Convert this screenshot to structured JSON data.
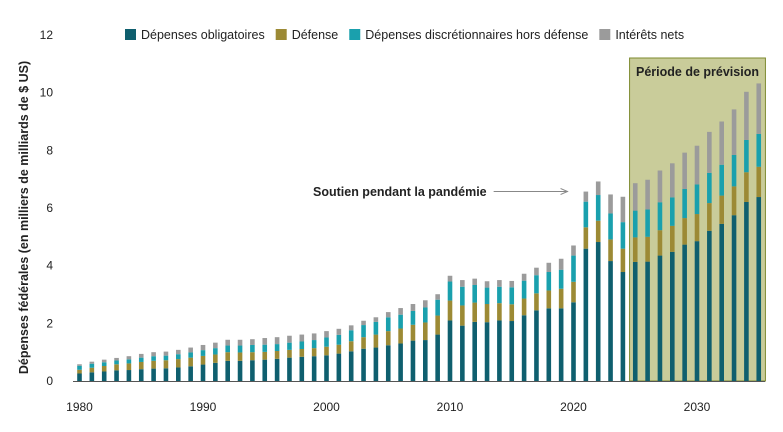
{
  "chart_data": {
    "type": "bar",
    "stacked": true,
    "title": "",
    "xlabel": "",
    "ylabel": "Dépenses fédérales (en milliers de milliards de $ US)",
    "ylim": [
      0,
      12
    ],
    "yticks": [
      0,
      2,
      4,
      6,
      8,
      10,
      12
    ],
    "xticks": [
      1980,
      1990,
      2000,
      2010,
      2020,
      2030
    ],
    "grid": false,
    "legend": "top",
    "colors": {
      "mandatory": "#0f5f6e",
      "defense": "#9c8a35",
      "nondefense": "#1aa0ad",
      "interest": "#9b9b9b",
      "forecast_bg": "#c9cc9a",
      "forecast_border": "#7d8a2e",
      "arrow": "#888888"
    },
    "x": [
      1980,
      1981,
      1982,
      1983,
      1984,
      1985,
      1986,
      1987,
      1988,
      1989,
      1990,
      1991,
      1992,
      1993,
      1994,
      1995,
      1996,
      1997,
      1998,
      1999,
      2000,
      2001,
      2002,
      2003,
      2004,
      2005,
      2006,
      2007,
      2008,
      2009,
      2010,
      2011,
      2012,
      2013,
      2014,
      2015,
      2016,
      2017,
      2018,
      2019,
      2020,
      2021,
      2022,
      2023,
      2024,
      2025,
      2026,
      2027,
      2028,
      2029,
      2030,
      2031,
      2032,
      2033,
      2034,
      2035
    ],
    "series": [
      {
        "key": "mandatory",
        "name": "Dépenses obligatoires",
        "values": [
          0.26,
          0.3,
          0.33,
          0.37,
          0.38,
          0.41,
          0.43,
          0.44,
          0.47,
          0.51,
          0.57,
          0.63,
          0.7,
          0.7,
          0.72,
          0.74,
          0.77,
          0.81,
          0.84,
          0.86,
          0.89,
          0.95,
          1.03,
          1.12,
          1.16,
          1.24,
          1.3,
          1.4,
          1.42,
          1.61,
          2.1,
          1.92,
          2.05,
          2.04,
          2.1,
          2.08,
          2.28,
          2.45,
          2.52,
          2.52,
          2.73,
          4.59,
          4.82,
          4.16,
          3.78,
          4.13,
          4.14,
          4.35,
          4.48,
          4.73,
          4.85,
          5.21,
          5.45,
          5.75,
          6.21,
          6.38
        ]
      },
      {
        "key": "defense",
        "name": "Défense",
        "values": [
          0.13,
          0.16,
          0.19,
          0.21,
          0.23,
          0.25,
          0.27,
          0.28,
          0.29,
          0.3,
          0.3,
          0.29,
          0.3,
          0.29,
          0.28,
          0.27,
          0.27,
          0.27,
          0.27,
          0.28,
          0.3,
          0.31,
          0.35,
          0.4,
          0.45,
          0.49,
          0.52,
          0.55,
          0.61,
          0.66,
          0.69,
          0.7,
          0.67,
          0.63,
          0.6,
          0.58,
          0.58,
          0.59,
          0.62,
          0.68,
          0.71,
          0.74,
          0.74,
          0.75,
          0.81,
          0.85,
          0.86,
          0.88,
          0.9,
          0.92,
          0.94,
          0.96,
          0.98,
          1.0,
          1.03,
          1.05
        ]
      },
      {
        "key": "nondefense",
        "name": "Dépenses discrétionnaires hors défense",
        "values": [
          0.14,
          0.14,
          0.13,
          0.13,
          0.14,
          0.15,
          0.16,
          0.16,
          0.17,
          0.18,
          0.2,
          0.22,
          0.23,
          0.24,
          0.25,
          0.25,
          0.24,
          0.25,
          0.26,
          0.28,
          0.32,
          0.34,
          0.38,
          0.42,
          0.44,
          0.48,
          0.48,
          0.48,
          0.52,
          0.55,
          0.66,
          0.65,
          0.61,
          0.57,
          0.57,
          0.59,
          0.62,
          0.63,
          0.64,
          0.66,
          0.91,
          0.89,
          0.89,
          0.9,
          0.92,
          0.93,
          0.95,
          0.97,
          0.99,
          1.01,
          1.03,
          1.05,
          1.07,
          1.09,
          1.12,
          1.14
        ]
      },
      {
        "key": "interest",
        "name": "Intérêts nets",
        "values": [
          0.05,
          0.07,
          0.09,
          0.09,
          0.11,
          0.13,
          0.14,
          0.14,
          0.15,
          0.17,
          0.18,
          0.19,
          0.2,
          0.2,
          0.2,
          0.23,
          0.24,
          0.24,
          0.24,
          0.23,
          0.22,
          0.21,
          0.17,
          0.15,
          0.16,
          0.18,
          0.23,
          0.24,
          0.25,
          0.19,
          0.2,
          0.23,
          0.22,
          0.22,
          0.23,
          0.22,
          0.24,
          0.26,
          0.32,
          0.38,
          0.35,
          0.35,
          0.47,
          0.66,
          0.88,
          0.95,
          1.03,
          1.1,
          1.18,
          1.26,
          1.34,
          1.42,
          1.5,
          1.58,
          1.67,
          1.75
        ]
      }
    ],
    "forecast_region": {
      "label": "Période de prévision",
      "start_year": 2025
    },
    "annotations": [
      {
        "text": "Soutien pendant la pandémie",
        "target_year": 2020
      }
    ]
  }
}
